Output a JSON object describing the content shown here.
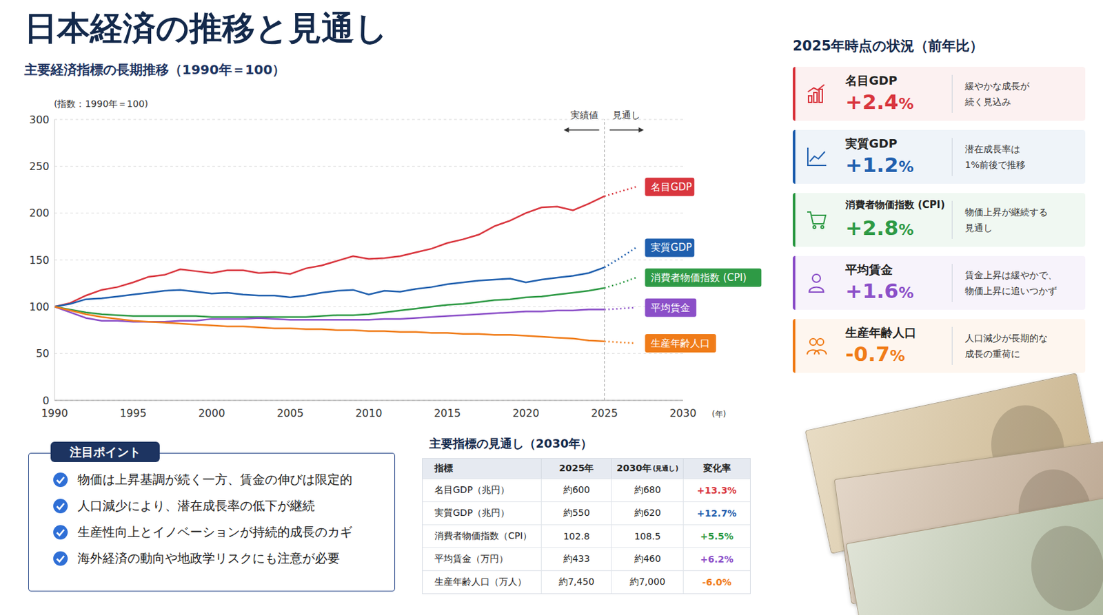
{
  "header": {
    "title": "日本経済の推移と見通し"
  },
  "chart_data": {
    "type": "line",
    "title": "主要経済指標の長期推移（1990年＝100）",
    "y_label": "(指数：1990年＝100)",
    "x_label": "(年)",
    "annotations": {
      "actual": "実績値",
      "forecast": "見通し"
    },
    "forecast_start": 2025,
    "xlim": [
      1990,
      2030
    ],
    "xticks": [
      1990,
      1995,
      2000,
      2005,
      2010,
      2015,
      2020,
      2025,
      2030
    ],
    "ylim": [
      0,
      300
    ],
    "yticks": [
      0,
      50,
      100,
      150,
      200,
      250,
      300
    ],
    "grid": true,
    "x": [
      1990,
      1991,
      1992,
      1993,
      1994,
      1995,
      1996,
      1997,
      1998,
      1999,
      2000,
      2001,
      2002,
      2003,
      2004,
      2005,
      2006,
      2007,
      2008,
      2009,
      2010,
      2011,
      2012,
      2013,
      2014,
      2015,
      2016,
      2017,
      2018,
      2019,
      2020,
      2021,
      2022,
      2023,
      2024,
      2025,
      2026,
      2027
    ],
    "series": [
      {
        "name": "名目GDP",
        "color": "#d9363e",
        "values": [
          100,
          104,
          112,
          118,
          121,
          126,
          132,
          134,
          140,
          138,
          136,
          139,
          139,
          136,
          137,
          135,
          141,
          144,
          149,
          154,
          151,
          152,
          154,
          158,
          162,
          168,
          172,
          177,
          186,
          192,
          200,
          206,
          207,
          203,
          210,
          218,
          null,
          null
        ],
        "forecast_values": [
          null,
          null,
          null,
          null,
          null,
          null,
          null,
          null,
          null,
          null,
          null,
          null,
          null,
          null,
          null,
          null,
          null,
          null,
          null,
          null,
          null,
          null,
          null,
          null,
          null,
          null,
          null,
          null,
          null,
          null,
          null,
          null,
          null,
          null,
          null,
          218,
          223,
          228
        ]
      },
      {
        "name": "実質GDP",
        "color": "#1f5fae",
        "values": [
          100,
          103,
          108,
          109,
          111,
          113,
          115,
          117,
          118,
          116,
          114,
          115,
          113,
          112,
          112,
          110,
          112,
          115,
          117,
          118,
          113,
          117,
          116,
          119,
          121,
          124,
          126,
          128,
          129,
          130,
          126,
          129,
          131,
          133,
          136,
          142,
          null,
          null
        ],
        "forecast_values": [
          null,
          null,
          null,
          null,
          null,
          null,
          null,
          null,
          null,
          null,
          null,
          null,
          null,
          null,
          null,
          null,
          null,
          null,
          null,
          null,
          null,
          null,
          null,
          null,
          null,
          null,
          null,
          null,
          null,
          null,
          null,
          null,
          null,
          null,
          null,
          142,
          152,
          163
        ]
      },
      {
        "name": "消費者物価指数 (CPI)",
        "color": "#2e9a45",
        "values": [
          100,
          97,
          94,
          92,
          91,
          90,
          90,
          90,
          90,
          90,
          89,
          89,
          89,
          89,
          89,
          89,
          89,
          90,
          91,
          91,
          92,
          94,
          96,
          98,
          100,
          102,
          103,
          105,
          107,
          108,
          110,
          111,
          113,
          115,
          117,
          120,
          null,
          null
        ],
        "forecast_values": [
          null,
          null,
          null,
          null,
          null,
          null,
          null,
          null,
          null,
          null,
          null,
          null,
          null,
          null,
          null,
          null,
          null,
          null,
          null,
          null,
          null,
          null,
          null,
          null,
          null,
          null,
          null,
          null,
          null,
          null,
          null,
          null,
          null,
          null,
          null,
          120,
          125,
          131
        ]
      },
      {
        "name": "平均賃金",
        "color": "#8b4fc8",
        "values": [
          100,
          94,
          88,
          85,
          85,
          84,
          84,
          84,
          85,
          85,
          87,
          87,
          87,
          88,
          87,
          86,
          86,
          86,
          86,
          86,
          86,
          87,
          87,
          88,
          89,
          90,
          91,
          92,
          93,
          94,
          95,
          95,
          96,
          96,
          97,
          97,
          null,
          null
        ],
        "forecast_values": [
          null,
          null,
          null,
          null,
          null,
          null,
          null,
          null,
          null,
          null,
          null,
          null,
          null,
          null,
          null,
          null,
          null,
          null,
          null,
          null,
          null,
          null,
          null,
          null,
          null,
          null,
          null,
          null,
          null,
          null,
          null,
          null,
          null,
          null,
          null,
          97,
          98,
          99
        ]
      },
      {
        "name": "生産年齢人口",
        "color": "#f07c19",
        "values": [
          100,
          96,
          92,
          89,
          87,
          85,
          84,
          83,
          82,
          81,
          80,
          79,
          79,
          78,
          77,
          77,
          76,
          76,
          75,
          75,
          74,
          74,
          73,
          73,
          72,
          72,
          71,
          71,
          70,
          70,
          69,
          68,
          67,
          66,
          64,
          63,
          null,
          null
        ],
        "forecast_values": [
          null,
          null,
          null,
          null,
          null,
          null,
          null,
          null,
          null,
          null,
          null,
          null,
          null,
          null,
          null,
          null,
          null,
          null,
          null,
          null,
          null,
          null,
          null,
          null,
          null,
          null,
          null,
          null,
          null,
          null,
          null,
          null,
          null,
          null,
          null,
          63,
          62,
          61
        ]
      }
    ]
  },
  "status_panel": {
    "title": "2025年時点の状況（前年比）",
    "cards": [
      {
        "label": "名目GDP",
        "value": "+2.4%",
        "note": [
          "緩やかな成長が",
          "続く見込み"
        ],
        "color": "#d9363e"
      },
      {
        "label": "実質GDP",
        "value": "+1.2%",
        "note": [
          "潜在成長率は",
          "1%前後で推移"
        ],
        "color": "#1f5fae"
      },
      {
        "label": "消費者物価指数 (CPI)",
        "value": "+2.8%",
        "note": [
          "物価上昇が継続する",
          "見通し"
        ],
        "color": "#2e9a45"
      },
      {
        "label": "平均賃金",
        "value": "+1.6%",
        "note": [
          "賃金上昇は緩やかで、",
          "物価上昇に追いつかず"
        ],
        "color": "#8b4fc8"
      },
      {
        "label": "生産年齢人口",
        "value": "-0.7%",
        "note": [
          "人口減少が長期的な",
          "成長の重荷に"
        ],
        "color": "#f07c19"
      }
    ]
  },
  "points": {
    "title": "注目ポイント",
    "items": [
      "物価は上昇基調が続く一方、賃金の伸びは限定的",
      "人口減少により、潜在成長率の低下が継続",
      "生産性向上とイノベーションが持続的成長のカギ",
      "海外経済の動向や地政学リスクにも注意が必要"
    ]
  },
  "table": {
    "title": "主要指標の見通し（2030年）",
    "columns": [
      {
        "text": "指標"
      },
      {
        "text": "2025年"
      },
      {
        "text": "2030年",
        "note": "(見通し)"
      },
      {
        "text": "変化率"
      }
    ],
    "rows": [
      {
        "cells": [
          "名目GDP（兆円）",
          "約600",
          "約680",
          "+13.3%"
        ],
        "color": "#d9363e"
      },
      {
        "cells": [
          "実質GDP（兆円）",
          "約550",
          "約620",
          "+12.7%"
        ],
        "color": "#1f5fae"
      },
      {
        "cells": [
          "消費者物価指数（CPI）",
          "102.8",
          "108.5",
          "+5.5%"
        ],
        "color": "#2e9a45"
      },
      {
        "cells": [
          "平均賃金（万円）",
          "約433",
          "約460",
          "+6.2%"
        ],
        "color": "#8b4fc8"
      },
      {
        "cells": [
          "生産年齢人口（万人）",
          "約7,450",
          "約7,000",
          "-6.0%"
        ],
        "color": "#f07c19"
      }
    ]
  }
}
